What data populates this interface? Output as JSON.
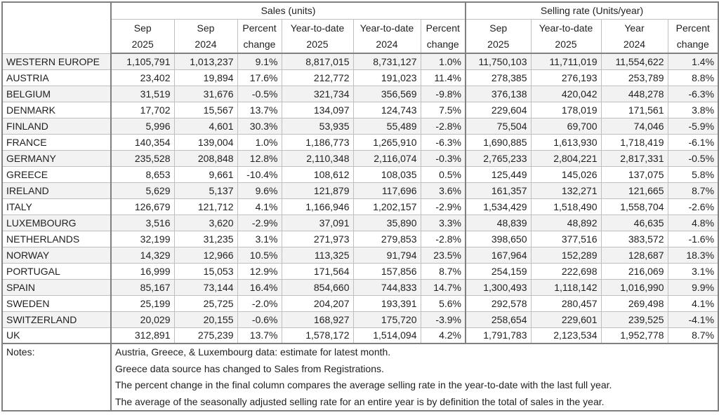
{
  "table": {
    "sections": [
      {
        "label": "Sales (units)"
      },
      {
        "label": "Selling rate (Units/year)"
      }
    ],
    "column_headers": [
      {
        "line1": "Sep",
        "line2": "2025"
      },
      {
        "line1": "Sep",
        "line2": "2024"
      },
      {
        "line1": "Percent",
        "line2": "change"
      },
      {
        "line1": "Year-to-date",
        "line2": "2025"
      },
      {
        "line1": "Year-to-date",
        "line2": "2024"
      },
      {
        "line1": "Percent",
        "line2": "change"
      },
      {
        "line1": "Sep",
        "line2": "2025"
      },
      {
        "line1": "Year-to-date",
        "line2": "2025"
      },
      {
        "line1": "Year",
        "line2": "2024"
      },
      {
        "line1": "Percent",
        "line2": "change"
      }
    ],
    "rows": [
      {
        "country": "WESTERN EUROPE",
        "values": [
          "1,105,791",
          "1,013,237",
          "9.1%",
          "8,817,015",
          "8,731,127",
          "1.0%",
          "11,750,103",
          "11,711,019",
          "11,554,622",
          "1.4%"
        ]
      },
      {
        "country": "AUSTRIA",
        "values": [
          "23,402",
          "19,894",
          "17.6%",
          "212,772",
          "191,023",
          "11.4%",
          "278,385",
          "276,193",
          "253,789",
          "8.8%"
        ]
      },
      {
        "country": "BELGIUM",
        "values": [
          "31,519",
          "31,676",
          "-0.5%",
          "321,734",
          "356,569",
          "-9.8%",
          "376,138",
          "420,042",
          "448,278",
          "-6.3%"
        ]
      },
      {
        "country": "DENMARK",
        "values": [
          "17,702",
          "15,567",
          "13.7%",
          "134,097",
          "124,743",
          "7.5%",
          "229,604",
          "178,019",
          "171,561",
          "3.8%"
        ]
      },
      {
        "country": "FINLAND",
        "values": [
          "5,996",
          "4,601",
          "30.3%",
          "53,935",
          "55,489",
          "-2.8%",
          "75,504",
          "69,700",
          "74,046",
          "-5.9%"
        ]
      },
      {
        "country": "FRANCE",
        "values": [
          "140,354",
          "139,004",
          "1.0%",
          "1,186,773",
          "1,265,910",
          "-6.3%",
          "1,690,885",
          "1,613,930",
          "1,718,419",
          "-6.1%"
        ]
      },
      {
        "country": "GERMANY",
        "values": [
          "235,528",
          "208,848",
          "12.8%",
          "2,110,348",
          "2,116,074",
          "-0.3%",
          "2,765,233",
          "2,804,221",
          "2,817,331",
          "-0.5%"
        ]
      },
      {
        "country": "GREECE",
        "values": [
          "8,653",
          "9,661",
          "-10.4%",
          "108,612",
          "108,035",
          "0.5%",
          "125,449",
          "145,026",
          "137,075",
          "5.8%"
        ]
      },
      {
        "country": "IRELAND",
        "values": [
          "5,629",
          "5,137",
          "9.6%",
          "121,879",
          "117,696",
          "3.6%",
          "161,357",
          "132,271",
          "121,665",
          "8.7%"
        ]
      },
      {
        "country": "ITALY",
        "values": [
          "126,679",
          "121,712",
          "4.1%",
          "1,166,946",
          "1,202,157",
          "-2.9%",
          "1,534,429",
          "1,518,490",
          "1,558,704",
          "-2.6%"
        ]
      },
      {
        "country": "LUXEMBOURG",
        "values": [
          "3,516",
          "3,620",
          "-2.9%",
          "37,091",
          "35,890",
          "3.3%",
          "48,839",
          "48,892",
          "46,635",
          "4.8%"
        ]
      },
      {
        "country": "NETHERLANDS",
        "values": [
          "32,199",
          "31,235",
          "3.1%",
          "271,973",
          "279,853",
          "-2.8%",
          "398,650",
          "377,516",
          "383,572",
          "-1.6%"
        ]
      },
      {
        "country": "NORWAY",
        "values": [
          "14,329",
          "12,966",
          "10.5%",
          "113,325",
          "91,794",
          "23.5%",
          "167,964",
          "152,289",
          "128,687",
          "18.3%"
        ]
      },
      {
        "country": "PORTUGAL",
        "values": [
          "16,999",
          "15,053",
          "12.9%",
          "171,564",
          "157,856",
          "8.7%",
          "254,159",
          "222,698",
          "216,069",
          "3.1%"
        ]
      },
      {
        "country": "SPAIN",
        "values": [
          "85,167",
          "73,144",
          "16.4%",
          "854,660",
          "744,833",
          "14.7%",
          "1,300,493",
          "1,118,142",
          "1,016,990",
          "9.9%"
        ]
      },
      {
        "country": "SWEDEN",
        "values": [
          "25,199",
          "25,725",
          "-2.0%",
          "204,207",
          "193,391",
          "5.6%",
          "292,578",
          "280,457",
          "269,498",
          "4.1%"
        ]
      },
      {
        "country": "SWITZERLAND",
        "values": [
          "20,029",
          "20,155",
          "-0.6%",
          "168,927",
          "175,720",
          "-3.9%",
          "258,654",
          "229,601",
          "239,525",
          "-4.1%"
        ]
      },
      {
        "country": "UK",
        "values": [
          "312,891",
          "275,239",
          "13.7%",
          "1,578,172",
          "1,514,094",
          "4.2%",
          "1,791,783",
          "2,123,534",
          "1,952,778",
          "8.7%"
        ]
      }
    ],
    "notes_label": "Notes:",
    "notes": [
      "Austria, Greece, & Luxembourg data: estimate for latest month.",
      "Greece data source has changed to Sales from Registrations.",
      "The percent change in the final column compares the average selling rate in the year-to-date with the last full year.",
      "The average of the seasonally adjusted selling rate for an entire year is by definition the total of sales in the year."
    ]
  },
  "colors": {
    "row_shade": "#f2f2f2",
    "grid_light": "#bfbfbf",
    "grid_dark": "#808080",
    "text": "#1f1f1f"
  }
}
